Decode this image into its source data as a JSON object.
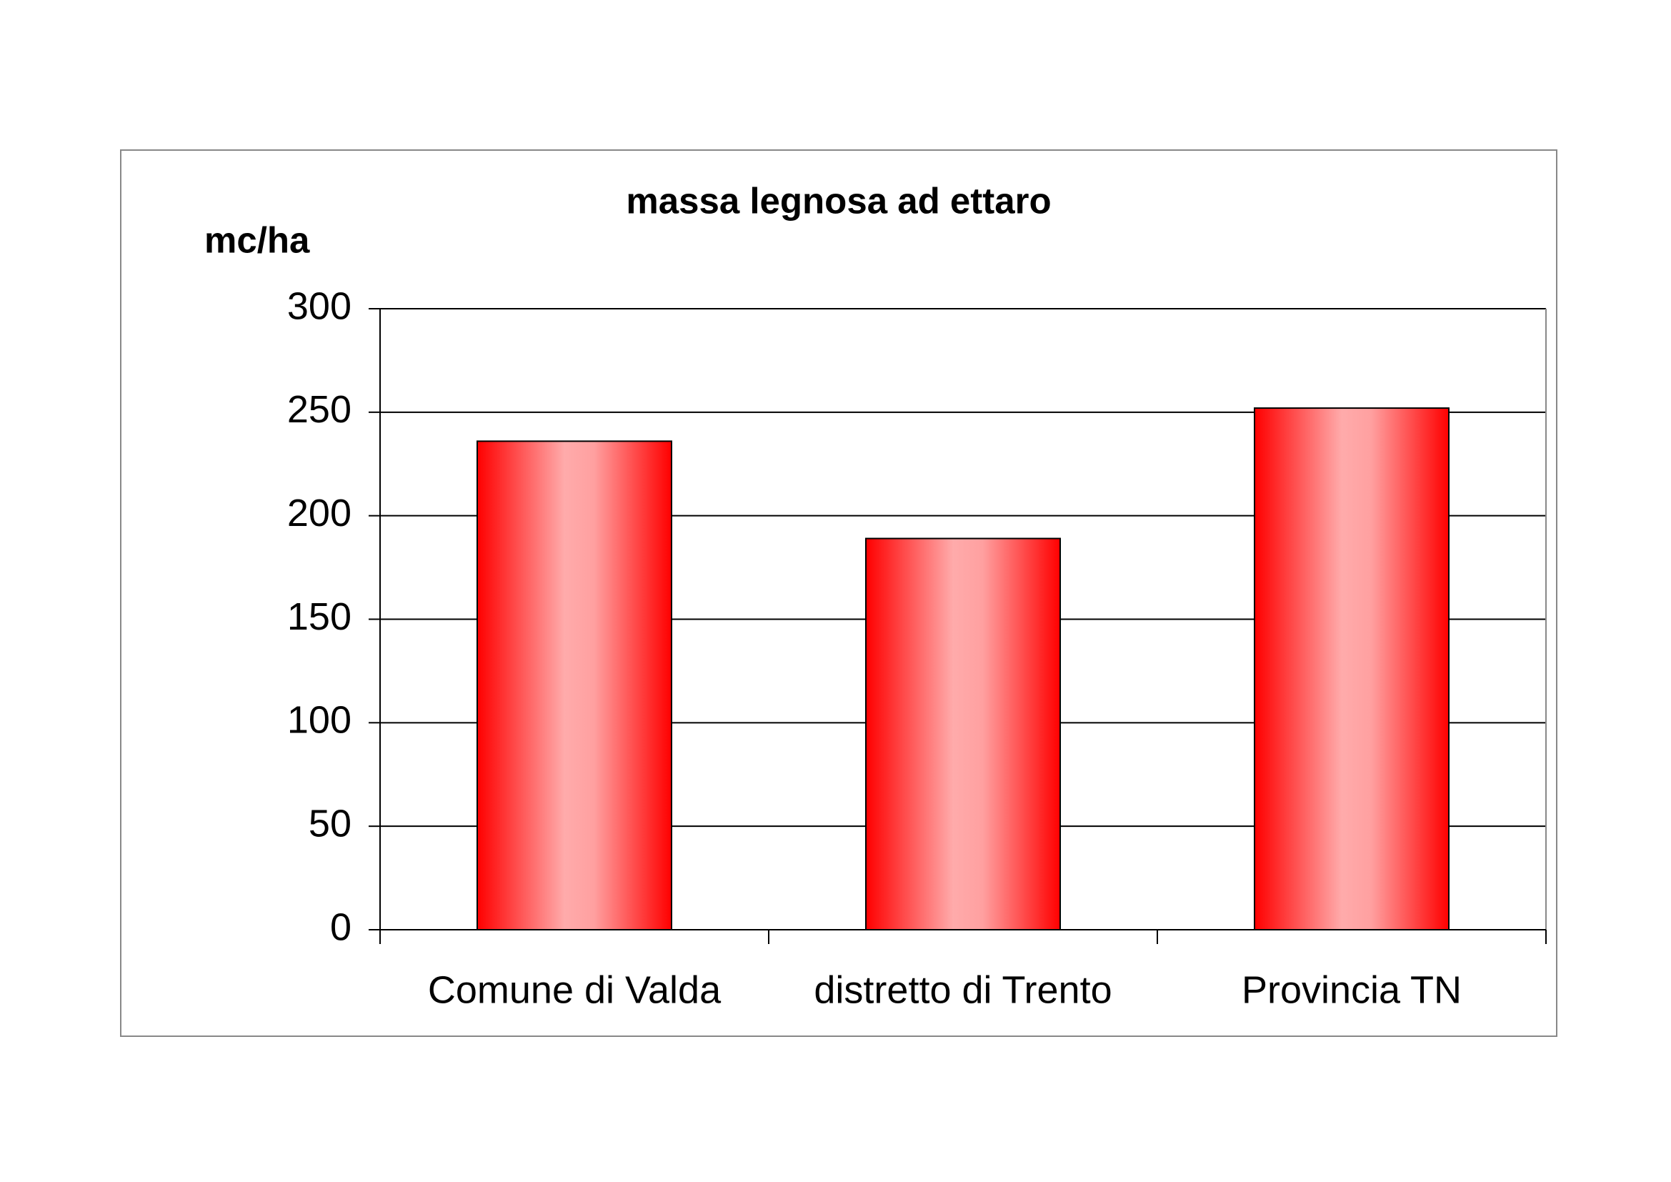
{
  "chart_data": {
    "type": "bar",
    "title": "massa legnosa ad ettaro",
    "y_label": "mc/ha",
    "categories": [
      "Comune di Valda",
      "distretto di Trento",
      "Provincia TN"
    ],
    "values": [
      236,
      189,
      252
    ],
    "color": "#ff0000",
    "ylim": [
      0,
      300
    ],
    "yticks": [
      0,
      50,
      100,
      150,
      200,
      250,
      300
    ],
    "grid": true
  }
}
